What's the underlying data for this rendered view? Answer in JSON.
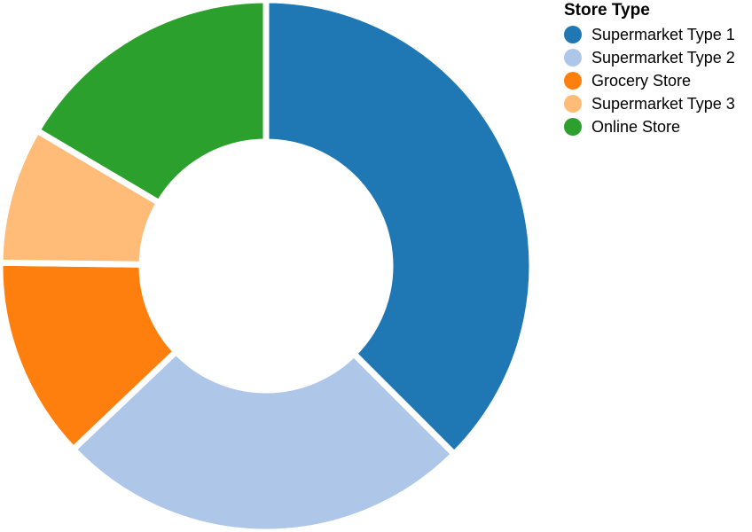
{
  "chart_data": {
    "type": "pie",
    "variant": "donut",
    "legend": {
      "title": "Store Type",
      "placement": "top-right"
    },
    "slices": [
      {
        "label": "Supermarket Type 1",
        "value": 37.5,
        "color": "#1f77b4"
      },
      {
        "label": "Supermarket Type 2",
        "value": 25.4,
        "color": "#aec7e8"
      },
      {
        "label": "Grocery Store",
        "value": 12.3,
        "color": "#ff7f0e"
      },
      {
        "label": "Supermarket Type 3",
        "value": 8.3,
        "color": "#ffbb78"
      },
      {
        "label": "Online Store",
        "value": 16.5,
        "color": "#2ca02c"
      }
    ]
  }
}
